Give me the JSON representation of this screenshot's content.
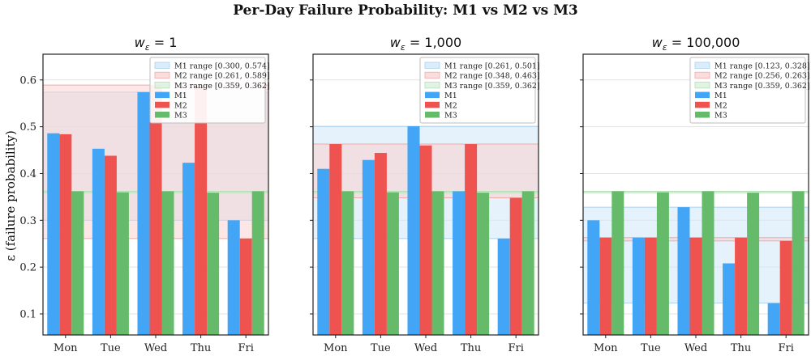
{
  "figure": {
    "title": "Per-Day Failure Probability: M1 vs M2 vs M3"
  },
  "colors": {
    "M1": "#42a5f5",
    "M2": "#ef5350",
    "M3": "#66bb6a",
    "M1_range": "#cfe6f8",
    "M2_range": "#f9d2d1",
    "M3_range": "#d7efd8"
  },
  "chart_data": [
    {
      "type": "bar",
      "title": "w_ε = 1",
      "title_parts": {
        "base": "w",
        "sub": "ε",
        "rest": " = 1"
      },
      "ylabel": "ε (failure probability)",
      "ylim": [
        0.055,
        0.655
      ],
      "yticks": [
        "0.1",
        "0.2",
        "0.3",
        "0.4",
        "0.5",
        "0.6"
      ],
      "ytick_values": [
        0.1,
        0.2,
        0.3,
        0.4,
        0.5,
        0.6
      ],
      "grid": true,
      "legend_position": "top-right",
      "categories": [
        "Mon",
        "Tue",
        "Wed",
        "Thu",
        "Fri"
      ],
      "series": [
        {
          "name": "M1",
          "values": [
            0.486,
            0.453,
            0.574,
            0.423,
            0.3
          ]
        },
        {
          "name": "M2",
          "values": [
            0.484,
            0.438,
            0.589,
            0.589,
            0.261
          ]
        },
        {
          "name": "M3",
          "values": [
            0.362,
            0.36,
            0.362,
            0.359,
            0.362
          ]
        }
      ],
      "ranges": [
        {
          "name": "M1 range [0.300, 0.574]",
          "series": "M1",
          "low": 0.3,
          "high": 0.574
        },
        {
          "name": "M2 range [0.261, 0.589]",
          "series": "M2",
          "low": 0.261,
          "high": 0.589
        },
        {
          "name": "M3 range [0.359, 0.362]",
          "series": "M3",
          "low": 0.359,
          "high": 0.362
        }
      ]
    },
    {
      "type": "bar",
      "title": "w_ε = 1,000",
      "title_parts": {
        "base": "w",
        "sub": "ε",
        "rest": " = 1,000"
      },
      "ylim": [
        0.055,
        0.655
      ],
      "grid": true,
      "legend_position": "top-right",
      "categories": [
        "Mon",
        "Tue",
        "Wed",
        "Thu",
        "Fri"
      ],
      "series": [
        {
          "name": "M1",
          "values": [
            0.41,
            0.429,
            0.501,
            0.362,
            0.261
          ]
        },
        {
          "name": "M2",
          "values": [
            0.463,
            0.444,
            0.46,
            0.463,
            0.348
          ]
        },
        {
          "name": "M3",
          "values": [
            0.362,
            0.36,
            0.362,
            0.359,
            0.362
          ]
        }
      ],
      "ranges": [
        {
          "name": "M1 range [0.261, 0.501]",
          "series": "M1",
          "low": 0.261,
          "high": 0.501
        },
        {
          "name": "M2 range [0.348, 0.463]",
          "series": "M2",
          "low": 0.348,
          "high": 0.463
        },
        {
          "name": "M3 range [0.359, 0.362]",
          "series": "M3",
          "low": 0.359,
          "high": 0.362
        }
      ]
    },
    {
      "type": "bar",
      "title": "w_ε = 100,000",
      "title_parts": {
        "base": "w",
        "sub": "ε",
        "rest": " = 100,000"
      },
      "ylim": [
        0.055,
        0.655
      ],
      "grid": true,
      "legend_position": "top-right",
      "categories": [
        "Mon",
        "Tue",
        "Wed",
        "Thu",
        "Fri"
      ],
      "series": [
        {
          "name": "M1",
          "values": [
            0.3,
            0.263,
            0.328,
            0.208,
            0.123
          ]
        },
        {
          "name": "M2",
          "values": [
            0.263,
            0.263,
            0.263,
            0.263,
            0.256
          ]
        },
        {
          "name": "M3",
          "values": [
            0.362,
            0.36,
            0.362,
            0.359,
            0.362
          ]
        }
      ],
      "ranges": [
        {
          "name": "M1 range [0.123, 0.328]",
          "series": "M1",
          "low": 0.123,
          "high": 0.328
        },
        {
          "name": "M2 range [0.256, 0.263]",
          "series": "M2",
          "low": 0.256,
          "high": 0.263
        },
        {
          "name": "M3 range [0.359, 0.362]",
          "series": "M3",
          "low": 0.359,
          "high": 0.362
        }
      ]
    }
  ]
}
